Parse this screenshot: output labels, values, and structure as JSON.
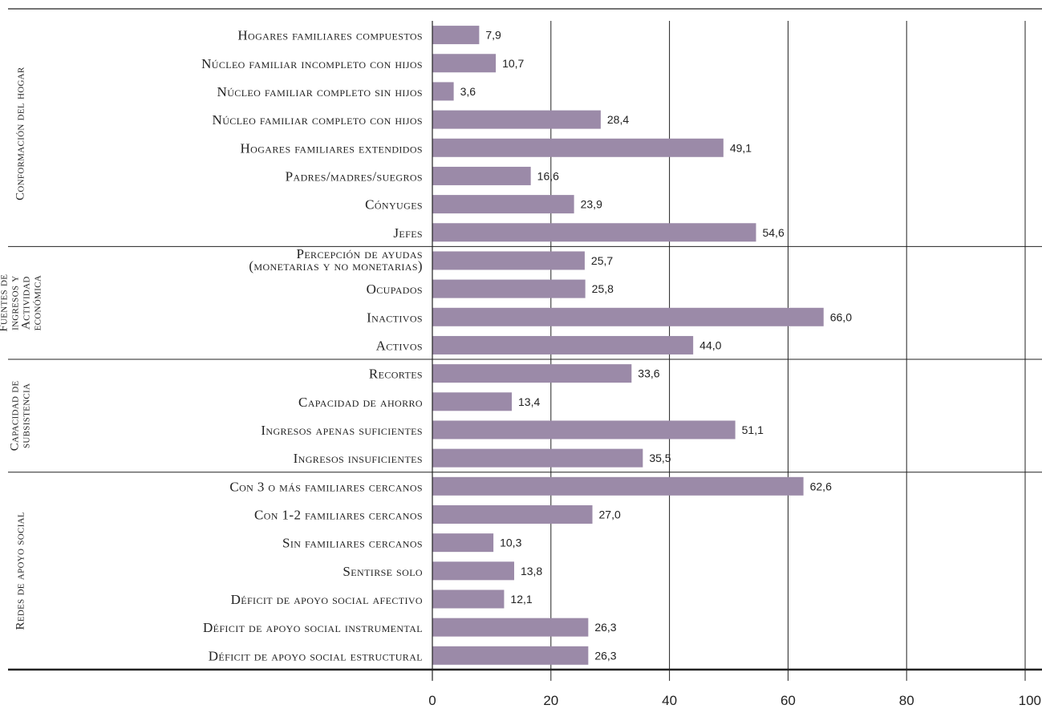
{
  "chart_data": {
    "type": "bar",
    "orientation": "horizontal",
    "xlim": [
      0,
      100
    ],
    "xticks": [
      "0",
      "20",
      "40",
      "60",
      "80",
      "100"
    ],
    "grid": true,
    "color": "#9b8aa8",
    "groups": [
      {
        "label": "Conformación del hogar",
        "items": [
          {
            "label": "Hogares familiares compuestos",
            "value": 7.9,
            "value_label": "7,9"
          },
          {
            "label": "Núcleo familiar incompleto con hijos",
            "value": 10.7,
            "value_label": "10,7"
          },
          {
            "label": "Núcleo familiar completo sin hijos",
            "value": 3.6,
            "value_label": "3,6"
          },
          {
            "label": "Núcleo familiar completo con hijos",
            "value": 28.4,
            "value_label": "28,4"
          },
          {
            "label": "Hogares familiares extendidos",
            "value": 49.1,
            "value_label": "49,1"
          },
          {
            "label": "Padres/madres/suegros",
            "value": 16.6,
            "value_label": "16,6"
          },
          {
            "label": "Cónyuges",
            "value": 23.9,
            "value_label": "23,9"
          },
          {
            "label": "Jefes",
            "value": 54.6,
            "value_label": "54,6"
          }
        ]
      },
      {
        "label": "Fuentes de ingresos y Actividad económica",
        "items": [
          {
            "label": "Percepción de ayudas (monetarias y no monetarias)",
            "value": 25.7,
            "value_label": "25,7"
          },
          {
            "label": "Ocupados",
            "value": 25.8,
            "value_label": "25,8"
          },
          {
            "label": "Inactivos",
            "value": 66.0,
            "value_label": "66,0"
          },
          {
            "label": "Activos",
            "value": 44.0,
            "value_label": "44,0"
          }
        ]
      },
      {
        "label": "Capacidad de subsistencia",
        "items": [
          {
            "label": "Recortes",
            "value": 33.6,
            "value_label": "33,6"
          },
          {
            "label": "Capacidad de ahorro",
            "value": 13.4,
            "value_label": "13,4"
          },
          {
            "label": "Ingresos apenas suficientes",
            "value": 51.1,
            "value_label": "51,1"
          },
          {
            "label": "Ingresos insuficientes",
            "value": 35.5,
            "value_label": "35,5"
          }
        ]
      },
      {
        "label": "Redes de apoyo social",
        "items": [
          {
            "label": "Con 3 o más familiares cercanos",
            "value": 62.6,
            "value_label": "62,6"
          },
          {
            "label": "Con 1-2 familiares cercanos",
            "value": 27.0,
            "value_label": "27,0"
          },
          {
            "label": "Sin familiares cercanos",
            "value": 10.3,
            "value_label": "10,3"
          },
          {
            "label": "Sentirse solo",
            "value": 13.8,
            "value_label": "13,8"
          },
          {
            "label": "Déficit de apoyo social afectivo",
            "value": 12.1,
            "value_label": "12,1"
          },
          {
            "label": "Déficit de apoyo social instrumental",
            "value": 26.3,
            "value_label": "26,3"
          },
          {
            "label": "Déficit de apoyo social estructural",
            "value": 26.3,
            "value_label": "26,3"
          }
        ]
      }
    ]
  }
}
